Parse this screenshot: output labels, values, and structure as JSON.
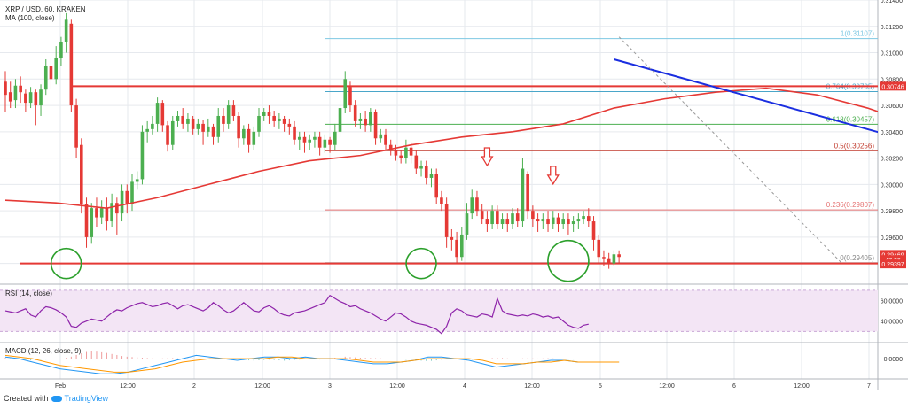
{
  "chart_data": {
    "type": "candlestick",
    "title": "XRP / USD, 60, KRAKEN",
    "ma_legend": "MA (100, close)",
    "price_axis": {
      "ticks": [
        "0.31400",
        "0.31200",
        "0.31000",
        "0.30800",
        "0.30600",
        "0.30400",
        "0.30200",
        "0.30000",
        "0.29800",
        "0.29600",
        "0.29400"
      ],
      "ylim": [
        0.2925,
        0.314
      ],
      "badges": [
        {
          "label": "0.30746",
          "value": 0.30746,
          "color": "#e53935"
        },
        {
          "label": "0.29469",
          "value": 0.29469,
          "color": "#e53935"
        },
        {
          "label": "47:28",
          "value": 0.2943,
          "color": "#e53935"
        },
        {
          "label": "0.29397",
          "value": 0.29397,
          "color": "#e53935"
        }
      ]
    },
    "time_axis": {
      "labels": [
        "Feb",
        "12:00",
        "2",
        "12:00",
        "3",
        "12:00",
        "4",
        "12:00",
        "5",
        "12:00",
        "6",
        "12:00",
        "7"
      ]
    },
    "horizontal_lines": [
      {
        "value": 0.30746,
        "color": "#e53935"
      },
      {
        "value": 0.294,
        "color": "#e53935"
      }
    ],
    "fibonacci": {
      "levels": [
        {
          "label": "1(0.31107)",
          "value": 0.31107,
          "color": "#7ec8e3"
        },
        {
          "label": "0.764(0.30705)",
          "value": 0.30705,
          "color": "#4aa6c9"
        },
        {
          "label": "0.618(0.30457)",
          "value": 0.30457,
          "color": "#4caf50"
        },
        {
          "label": "0.5(0.30256)",
          "value": 0.30256,
          "color": "#c0392b"
        },
        {
          "label": "0.236(0.29807)",
          "value": 0.29807,
          "color": "#e57373"
        },
        {
          "label": "0(0.29405)",
          "value": 0.29405,
          "color": "#888888"
        }
      ]
    },
    "candles": [
      [
        0.3078,
        0.3068,
        0.3086,
        0.3055
      ],
      [
        0.307,
        0.3063,
        0.3078,
        0.3058
      ],
      [
        0.3064,
        0.3075,
        0.308,
        0.3058
      ],
      [
        0.3075,
        0.307,
        0.3082,
        0.3062
      ],
      [
        0.3069,
        0.3062,
        0.3072,
        0.3055
      ],
      [
        0.3062,
        0.307,
        0.3074,
        0.3058
      ],
      [
        0.307,
        0.306,
        0.3072,
        0.3045
      ],
      [
        0.306,
        0.3072,
        0.3076,
        0.3052
      ],
      [
        0.3072,
        0.309,
        0.3095,
        0.3068
      ],
      [
        0.309,
        0.308,
        0.3096,
        0.3072
      ],
      [
        0.308,
        0.3096,
        0.3105,
        0.3076
      ],
      [
        0.3096,
        0.3108,
        0.3112,
        0.309
      ],
      [
        0.3108,
        0.3125,
        0.313,
        0.31
      ],
      [
        0.3122,
        0.306,
        0.3125,
        0.3055
      ],
      [
        0.306,
        0.3028,
        0.3065,
        0.302
      ],
      [
        0.303,
        0.2985,
        0.3035,
        0.2978
      ],
      [
        0.2985,
        0.296,
        0.299,
        0.2952
      ],
      [
        0.296,
        0.2982,
        0.2986,
        0.2955
      ],
      [
        0.2982,
        0.2975,
        0.299,
        0.2968
      ],
      [
        0.2975,
        0.2982,
        0.2988,
        0.297
      ],
      [
        0.2982,
        0.2972,
        0.299,
        0.2965
      ],
      [
        0.2972,
        0.2986,
        0.2993,
        0.2968
      ],
      [
        0.2986,
        0.2978,
        0.299,
        0.2962
      ],
      [
        0.2978,
        0.2995,
        0.3,
        0.2972
      ],
      [
        0.2995,
        0.2985,
        0.3,
        0.2978
      ],
      [
        0.2985,
        0.3002,
        0.3008,
        0.298
      ],
      [
        0.3002,
        0.3004,
        0.301,
        0.2996
      ],
      [
        0.3004,
        0.304,
        0.3045,
        0.3
      ],
      [
        0.304,
        0.3042,
        0.3048,
        0.3032
      ],
      [
        0.3042,
        0.3046,
        0.3052,
        0.3038
      ],
      [
        0.3046,
        0.3062,
        0.3066,
        0.304
      ],
      [
        0.3062,
        0.3045,
        0.3064,
        0.304
      ],
      [
        0.3045,
        0.303,
        0.3048,
        0.3025
      ],
      [
        0.303,
        0.3048,
        0.3052,
        0.3026
      ],
      [
        0.3048,
        0.3052,
        0.3056,
        0.3044
      ],
      [
        0.3052,
        0.3046,
        0.3058,
        0.3042
      ],
      [
        0.3046,
        0.305,
        0.3054,
        0.304
      ],
      [
        0.305,
        0.3042,
        0.3052,
        0.3038
      ],
      [
        0.3042,
        0.3046,
        0.305,
        0.3038
      ],
      [
        0.3046,
        0.304,
        0.3049,
        0.303
      ],
      [
        0.304,
        0.3044,
        0.305,
        0.3036
      ],
      [
        0.3044,
        0.3036,
        0.3046,
        0.303
      ],
      [
        0.3036,
        0.3052,
        0.3058,
        0.3032
      ],
      [
        0.3052,
        0.3046,
        0.3058,
        0.304
      ],
      [
        0.3046,
        0.306,
        0.3064,
        0.3042
      ],
      [
        0.306,
        0.3052,
        0.3064,
        0.3048
      ],
      [
        0.3052,
        0.3035,
        0.3055,
        0.3028
      ],
      [
        0.3035,
        0.3042,
        0.3045,
        0.303
      ],
      [
        0.3042,
        0.303,
        0.3046,
        0.3024
      ],
      [
        0.303,
        0.304,
        0.3044,
        0.3026
      ],
      [
        0.304,
        0.3052,
        0.3058,
        0.3036
      ],
      [
        0.3052,
        0.3055,
        0.3058,
        0.3048
      ],
      [
        0.3055,
        0.3052,
        0.306,
        0.3046
      ],
      [
        0.3052,
        0.3048,
        0.3056,
        0.3044
      ],
      [
        0.3048,
        0.305,
        0.3054,
        0.3042
      ],
      [
        0.305,
        0.3046,
        0.3052,
        0.304
      ],
      [
        0.3046,
        0.3044,
        0.305,
        0.3038
      ],
      [
        0.3044,
        0.3034,
        0.3048,
        0.303
      ],
      [
        0.3034,
        0.3036,
        0.304,
        0.3026
      ],
      [
        0.3036,
        0.3032,
        0.304,
        0.3024
      ],
      [
        0.3032,
        0.3034,
        0.3038,
        0.3026
      ],
      [
        0.3034,
        0.3036,
        0.304,
        0.3028
      ],
      [
        0.3036,
        0.3028,
        0.304,
        0.3022
      ],
      [
        0.3028,
        0.3034,
        0.3038,
        0.3024
      ],
      [
        0.3034,
        0.303,
        0.3036,
        0.3024
      ],
      [
        0.303,
        0.304,
        0.3046,
        0.3026
      ],
      [
        0.304,
        0.3058,
        0.3064,
        0.3036
      ],
      [
        0.3058,
        0.308,
        0.3086,
        0.3054
      ],
      [
        0.3074,
        0.306,
        0.3078,
        0.3055
      ],
      [
        0.306,
        0.3048,
        0.3064,
        0.3044
      ],
      [
        0.3048,
        0.305,
        0.3054,
        0.3042
      ],
      [
        0.305,
        0.3045,
        0.3056,
        0.304
      ],
      [
        0.3045,
        0.3055,
        0.3058,
        0.304
      ],
      [
        0.3055,
        0.3035,
        0.3057,
        0.303
      ],
      [
        0.3035,
        0.3038,
        0.3042,
        0.3032
      ],
      [
        0.3038,
        0.303,
        0.3042,
        0.3026
      ],
      [
        0.303,
        0.3026,
        0.3034,
        0.3022
      ],
      [
        0.3026,
        0.3022,
        0.303,
        0.3018
      ],
      [
        0.3022,
        0.302,
        0.3026,
        0.3016
      ],
      [
        0.302,
        0.3028,
        0.3034,
        0.3016
      ],
      [
        0.3028,
        0.3022,
        0.3032,
        0.3016
      ],
      [
        0.3022,
        0.3012,
        0.3026,
        0.3008
      ],
      [
        0.3012,
        0.3014,
        0.3018,
        0.3006
      ],
      [
        0.3014,
        0.3005,
        0.3018,
        0.3
      ],
      [
        0.3005,
        0.3008,
        0.3012,
        0.2998
      ],
      [
        0.3008,
        0.299,
        0.3012,
        0.2985
      ],
      [
        0.299,
        0.2985,
        0.2995,
        0.298
      ],
      [
        0.2985,
        0.296,
        0.299,
        0.2952
      ],
      [
        0.296,
        0.2958,
        0.2966,
        0.295
      ],
      [
        0.2958,
        0.2945,
        0.2964,
        0.294
      ],
      [
        0.2945,
        0.2962,
        0.2968,
        0.2942
      ],
      [
        0.2962,
        0.2978,
        0.2986,
        0.2958
      ],
      [
        0.2978,
        0.299,
        0.2996,
        0.2974
      ],
      [
        0.299,
        0.298,
        0.2995,
        0.2976
      ],
      [
        0.298,
        0.2974,
        0.2985,
        0.297
      ],
      [
        0.2974,
        0.297,
        0.298,
        0.2964
      ],
      [
        0.297,
        0.298,
        0.2984,
        0.2966
      ],
      [
        0.298,
        0.297,
        0.2984,
        0.2966
      ],
      [
        0.297,
        0.2974,
        0.2978,
        0.2966
      ],
      [
        0.2974,
        0.297,
        0.2978,
        0.2964
      ],
      [
        0.297,
        0.2978,
        0.2982,
        0.2966
      ],
      [
        0.2978,
        0.2972,
        0.2982,
        0.2968
      ],
      [
        0.2972,
        0.3012,
        0.302,
        0.2968
      ],
      [
        0.3008,
        0.298,
        0.301,
        0.2974
      ],
      [
        0.298,
        0.2974,
        0.2984,
        0.2968
      ],
      [
        0.2974,
        0.2972,
        0.2978,
        0.2964
      ],
      [
        0.2972,
        0.2974,
        0.2978,
        0.2966
      ],
      [
        0.2974,
        0.297,
        0.298,
        0.2964
      ],
      [
        0.297,
        0.2975,
        0.298,
        0.2966
      ],
      [
        0.2975,
        0.297,
        0.2978,
        0.2964
      ],
      [
        0.297,
        0.2974,
        0.2978,
        0.2966
      ],
      [
        0.2974,
        0.297,
        0.2978,
        0.2962
      ],
      [
        0.297,
        0.2972,
        0.2976,
        0.2964
      ],
      [
        0.2972,
        0.2974,
        0.2978,
        0.2966
      ],
      [
        0.2974,
        0.2976,
        0.298,
        0.297
      ],
      [
        0.2976,
        0.2972,
        0.2982,
        0.2968
      ],
      [
        0.2972,
        0.2958,
        0.2976,
        0.295
      ],
      [
        0.2958,
        0.2945,
        0.2962,
        0.294
      ],
      [
        0.2945,
        0.2944,
        0.295,
        0.2938
      ],
      [
        0.2944,
        0.294,
        0.2948,
        0.2936
      ],
      [
        0.294,
        0.2947,
        0.295,
        0.2938
      ],
      [
        0.2947,
        0.2945,
        0.295,
        0.294
      ]
    ],
    "ma_points": [
      [
        0,
        0.2988
      ],
      [
        10,
        0.2986
      ],
      [
        20,
        0.2982
      ],
      [
        30,
        0.299
      ],
      [
        40,
        0.3
      ],
      [
        50,
        0.301
      ],
      [
        60,
        0.3018
      ],
      [
        70,
        0.3022
      ],
      [
        80,
        0.303
      ],
      [
        90,
        0.3036
      ],
      [
        100,
        0.304
      ],
      [
        110,
        0.3046
      ],
      [
        120,
        0.3058
      ],
      [
        130,
        0.3065
      ],
      [
        140,
        0.307
      ],
      [
        150,
        0.3073
      ],
      [
        160,
        0.3068
      ],
      [
        170,
        0.3058
      ],
      [
        180,
        0.3045
      ],
      [
        190,
        0.3032
      ],
      [
        200,
        0.3022
      ],
      [
        210,
        0.3016
      ],
      [
        220,
        0.3012
      ],
      [
        230,
        0.3008
      ]
    ],
    "trendline": {
      "from": [
        120,
        0.3095
      ],
      "to": [
        252,
        0.2955
      ]
    },
    "dashed_line": {
      "from": [
        121,
        0.3112
      ],
      "to": [
        165,
        0.294
      ]
    },
    "rsi": {
      "legend": "RSI (14, close)",
      "ticks": [
        "60.0000",
        "40.0000"
      ],
      "ylim": [
        20,
        75
      ],
      "band": [
        30,
        70
      ],
      "values": [
        50,
        49,
        48,
        50,
        52,
        46,
        44,
        50,
        54,
        53,
        51,
        48,
        44,
        35,
        34,
        38,
        40,
        42,
        41,
        40,
        44,
        48,
        51,
        50,
        53,
        55,
        57,
        58,
        56,
        54,
        55,
        57,
        58,
        55,
        52,
        55,
        56,
        54,
        52,
        50,
        53,
        58,
        55,
        51,
        48,
        50,
        54,
        58,
        54,
        50,
        49,
        53,
        55,
        52,
        48,
        46,
        45,
        48,
        49,
        50,
        52,
        54,
        56,
        58,
        65,
        62,
        59,
        57,
        54,
        55,
        52,
        50,
        48,
        45,
        42,
        40,
        44,
        48,
        47,
        44,
        40,
        38,
        37,
        36,
        34,
        32,
        28,
        35,
        48,
        52,
        50,
        46,
        45,
        44,
        47,
        46,
        44,
        62,
        50,
        47,
        46,
        45,
        46,
        45,
        47,
        46,
        44,
        45,
        43,
        44,
        40,
        36,
        34,
        33,
        36,
        37
      ]
    },
    "macd": {
      "legend": "MACD (12, 26, close, 9)",
      "ticks": [
        "0.0000"
      ],
      "ylim": [
        -0.0012,
        0.0009
      ],
      "histogram": [
        5e-05,
        2e-05,
        -2e-05,
        -4e-05,
        -6e-05,
        -0.0001,
        -8e-05,
        -6e-05,
        -5e-05,
        -6e-05,
        -4e-05,
        -2e-05,
        5e-05,
        0.00012,
        0.00022,
        0.00032,
        0.0004,
        0.00044,
        0.00042,
        0.00038,
        0.00034,
        0.00028,
        0.00022,
        0.00016,
        0.00012,
        0.0001,
        8e-05,
        6e-05,
        4e-05,
        2e-05,
        0.0,
        2e-05,
        3e-05,
        4e-05,
        2e-05,
        1e-05,
        2e-05,
        2e-05,
        -1e-05,
        -2e-05,
        -1e-05,
        1e-05,
        -2e-05,
        -3e-05,
        -4e-05,
        -2e-05,
        -5e-05,
        -8e-05,
        -0.0001,
        -0.00012,
        -0.0001,
        -8e-05,
        -6e-05,
        -8e-05,
        -0.0001,
        -0.00012,
        -0.0001,
        -8e-05,
        -6e-05,
        -4e-05,
        -2e-05,
        -3e-05,
        -5e-05,
        -3e-05,
        2e-05,
        6e-05,
        0.0001,
        0.00012,
        0.0001,
        8e-05,
        6e-05,
        5e-05,
        4e-05,
        3e-05,
        2e-05,
        1e-05,
        -2e-05,
        -3e-05,
        -4e-05,
        -6e-05,
        -8e-05,
        -0.0001,
        -0.00012,
        -0.00014,
        -0.00013,
        -0.0001,
        -6e-05,
        -3e-05,
        -2e-05,
        -4e-05,
        -6e-05,
        -8e-05,
        -6e-05,
        -4e-05,
        -3e-05,
        -2e-05,
        4e-05,
        6e-05,
        4e-05,
        2e-05,
        1e-05,
        0.0,
        2e-05,
        3e-05,
        2e-05,
        1e-05,
        2e-05,
        3e-05,
        2e-05,
        -1e-05,
        -4e-05,
        -6e-05,
        -5e-05,
        -3e-05,
        -2e-05,
        -1e-05
      ],
      "macd_line": [
        0.0001,
        0.0,
        -0.0002,
        -0.0004,
        -0.0006,
        -0.0007,
        -0.0008,
        -0.0009,
        -0.0009,
        -0.0008,
        -0.0006,
        -0.0004,
        -0.0002,
        0.0,
        0.0002,
        0.0001,
        0.0,
        -0.0001,
        0.0,
        0.0001,
        0.0001,
        0.0,
        0.0001,
        0.0,
        0.0,
        -0.0001,
        -0.0002,
        -0.0003,
        -0.0003,
        -0.0002,
        -0.0001,
        0.0001,
        0.0001,
        0.0,
        -0.0001,
        -0.0003,
        -0.0005,
        -0.0004,
        -0.0003,
        -0.0002,
        -0.0001,
        -0.0001,
        -0.0002,
        -0.0002,
        -0.0002,
        -0.0002
      ],
      "signal_line": [
        0.0002,
        0.0001,
        0.0,
        -0.0002,
        -0.0004,
        -0.0005,
        -0.0006,
        -0.0007,
        -0.0008,
        -0.0008,
        -0.0007,
        -0.0006,
        -0.0004,
        -0.0002,
        -0.0001,
        0.0,
        0.0,
        0.0,
        0.0,
        0.0,
        0.0001,
        0.0001,
        0.0,
        0.0,
        0.0,
        0.0,
        -0.0001,
        -0.0002,
        -0.0002,
        -0.0002,
        -0.0001,
        0.0,
        0.0,
        0.0,
        0.0,
        -0.0001,
        -0.0003,
        -0.0003,
        -0.0003,
        -0.0002,
        -0.0002,
        -0.0001,
        -0.0002,
        -0.0002,
        -0.0002,
        -0.0002
      ]
    },
    "annotations": [
      {
        "type": "circle",
        "at": [
          12,
          0.294
        ]
      },
      {
        "type": "circle",
        "at": [
          82,
          0.294
        ]
      },
      {
        "type": "circle",
        "at": [
          111,
          0.2942
        ]
      },
      {
        "type": "arrow",
        "at": [
          95,
          0.3013
        ]
      },
      {
        "type": "arrow",
        "at": [
          108,
          0.2999
        ]
      }
    ]
  },
  "colors": {
    "up": "#4caf50",
    "down": "#e53935",
    "ma": "#e53935",
    "trendline": "#1a2ee0",
    "grid": "#e6e9ee",
    "rsi_band": "#f3e5f5",
    "rsi_line": "#8e24aa",
    "macd_line": "#2196f3",
    "signal_line": "#ff9800",
    "circle": "#2ca02c"
  },
  "footer": {
    "created_with": "Created with",
    "brand": "TradingView"
  }
}
